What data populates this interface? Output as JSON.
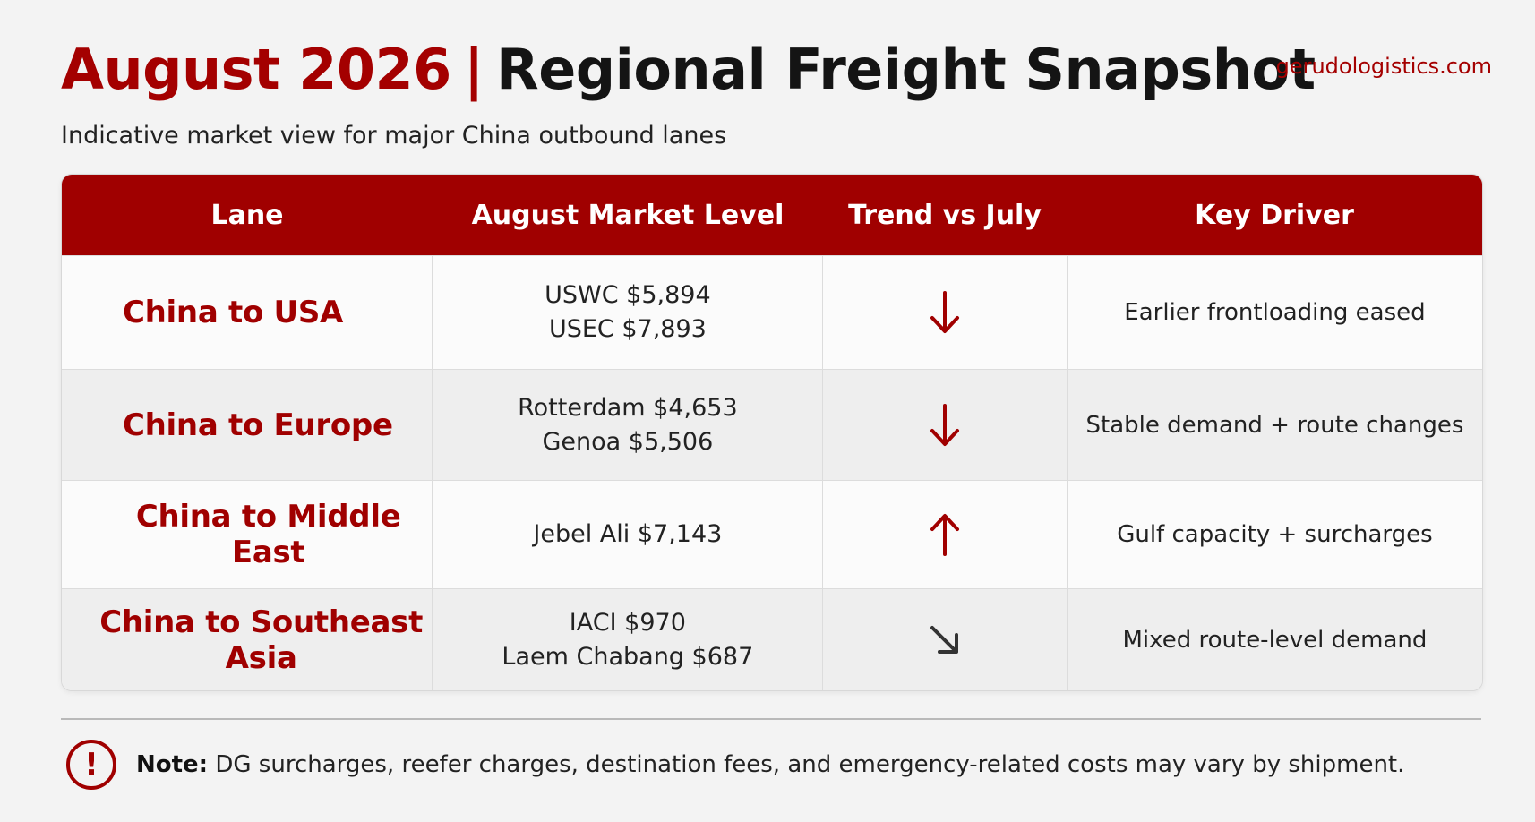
{
  "header": {
    "title_accent": "August 2026",
    "title_separator": "|",
    "title_main": "Regional Freight Snapshot",
    "website": "gerudologistics.com",
    "subtitle": "Indicative market view for major China outbound lanes"
  },
  "table": {
    "columns": [
      "Lane",
      "August Market Level",
      "Trend vs July",
      "Key Driver"
    ],
    "rows": [
      {
        "lane": "China to USA",
        "levels": [
          "USWC $5,894",
          "USEC $7,893"
        ],
        "trend": "down",
        "trend_icon": "arrow-down-icon",
        "trend_color": "#a00000",
        "driver": "Earlier frontloading eased"
      },
      {
        "lane": "China to Europe",
        "levels": [
          "Rotterdam $4,653",
          "Genoa $5,506"
        ],
        "trend": "down",
        "trend_icon": "arrow-down-icon",
        "trend_color": "#a00000",
        "driver": "Stable demand + route changes"
      },
      {
        "lane": "China to Middle East",
        "levels": [
          "Jebel Ali $7,143"
        ],
        "trend": "up",
        "trend_icon": "arrow-up-icon",
        "trend_color": "#a00000",
        "driver": "Gulf capacity + surcharges"
      },
      {
        "lane": "China to Southeast Asia",
        "levels": [
          "IACI $970",
          "Laem Chabang $687"
        ],
        "trend": "slightly down",
        "trend_icon": "arrow-down-right-icon",
        "trend_color": "#333333",
        "driver": "Mixed route-level demand"
      }
    ]
  },
  "note": {
    "icon": "exclamation-circle-icon",
    "label": "Note:",
    "text": "DG surcharges, reefer charges, destination fees, and emergency-related costs may vary by shipment."
  },
  "colors": {
    "brand": "#a00000",
    "background": "#f3f3f3"
  }
}
